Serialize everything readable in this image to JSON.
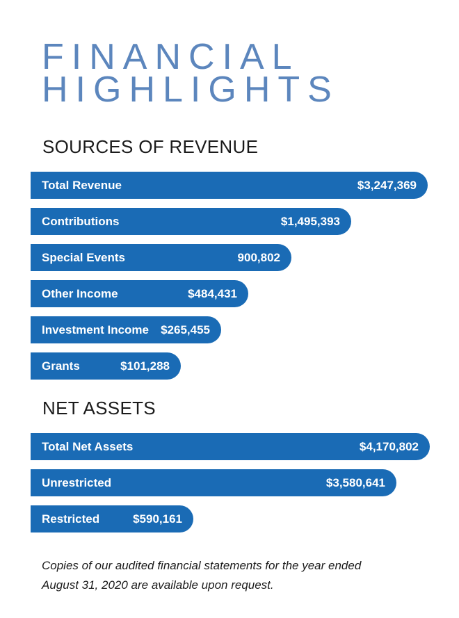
{
  "title": {
    "line1": "FINANCIAL",
    "line2": "HIGHLIGHTS"
  },
  "colors": {
    "title": "#5c86bd",
    "bar": "#1a6bb5",
    "bar_text": "#ffffff",
    "text": "#1b1b1b"
  },
  "chart_data": [
    {
      "type": "bar",
      "orientation": "horizontal",
      "title": "SOURCES OF REVENUE",
      "categories": [
        "Total Revenue",
        "Contributions",
        "Special Events",
        "Other Income",
        "Investment Income",
        "Grants"
      ],
      "values": [
        3247369,
        1495393,
        900802,
        484431,
        265455,
        101288
      ],
      "value_labels": [
        "$3,247,369",
        "$1,495,393",
        "900,802",
        "$484,431",
        "$265,455",
        "$101,288"
      ]
    },
    {
      "type": "bar",
      "orientation": "horizontal",
      "title": "NET ASSETS",
      "categories": [
        "Total Net Assets",
        "Unrestricted",
        "Restricted"
      ],
      "values": [
        4170802,
        3580641,
        590161
      ],
      "value_labels": [
        "$4,170,802",
        "$3,580,641",
        "$590,161"
      ]
    }
  ],
  "footnote": {
    "line1": "Copies of our audited financial statements for the year ended",
    "line2": "August 31, 2020  are available upon request."
  }
}
